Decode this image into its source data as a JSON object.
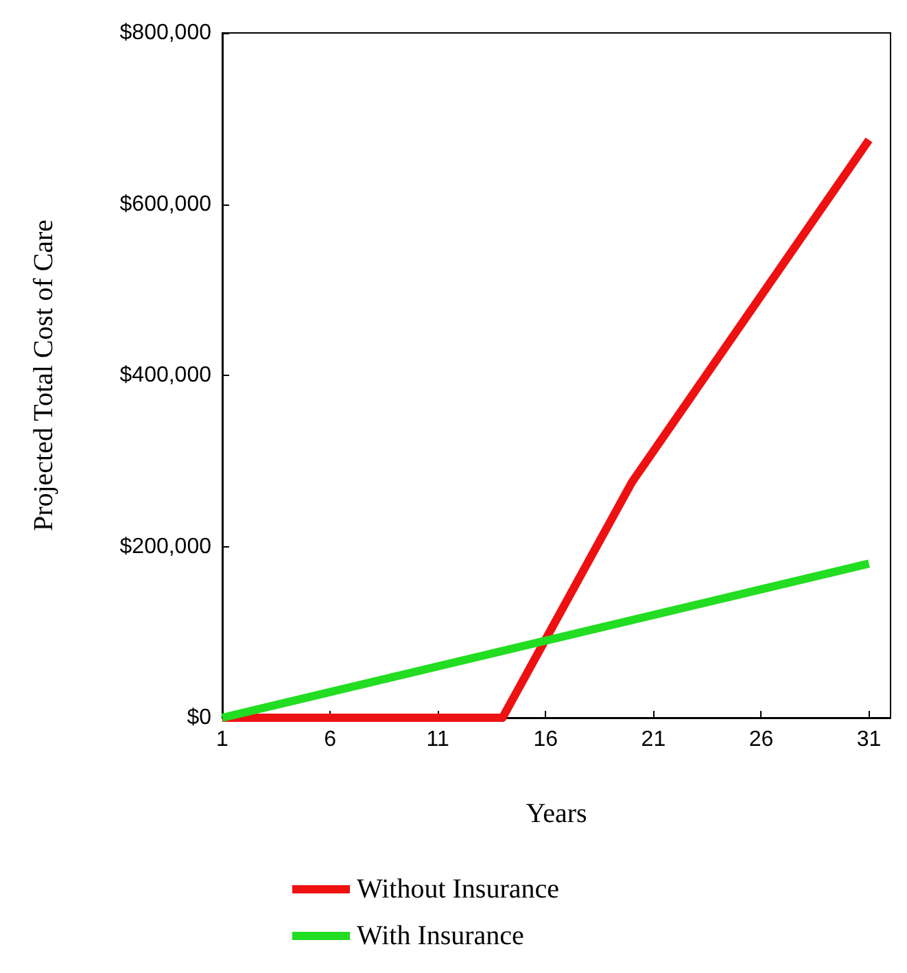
{
  "chart_data": {
    "type": "line",
    "xlabel": "Years",
    "ylabel": "Projected Total Cost of Care",
    "series": [
      {
        "name": "Without Insurance",
        "color": "#ee1111",
        "x": [
          1,
          14,
          20,
          31
        ],
        "values": [
          0,
          0,
          275000,
          675000
        ]
      },
      {
        "name": "With Insurance",
        "color": "#22dd22",
        "x": [
          1,
          31
        ],
        "values": [
          0,
          180000
        ]
      }
    ],
    "xlim": [
      1,
      32
    ],
    "xticks": [
      1,
      6,
      11,
      16,
      21,
      26,
      31
    ],
    "ylim": [
      0,
      800000
    ],
    "yticks": [
      {
        "value": 0,
        "label": "$0"
      },
      {
        "value": 200000,
        "label": "$200,000"
      },
      {
        "value": 400000,
        "label": "$400,000"
      },
      {
        "value": 600000,
        "label": "$600,000"
      },
      {
        "value": 800000,
        "label": "$800,000"
      }
    ],
    "grid": false,
    "legend": "bottom"
  }
}
